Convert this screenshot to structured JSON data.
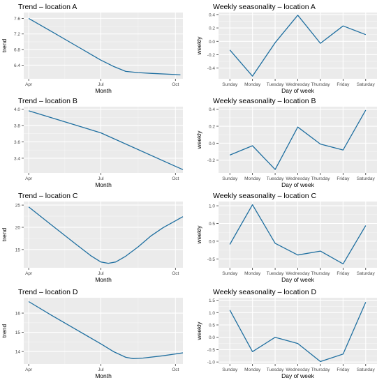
{
  "chart_data": [
    {
      "type": "line",
      "title": "Trend – location A",
      "xlabel": "Month",
      "ylabel": "trend",
      "x_ticks": [
        "Apr",
        "Jul",
        "Oct"
      ],
      "x_tick_values": [
        0.1,
        3.0,
        6.0
      ],
      "xlim": [
        -0.1,
        6.3
      ],
      "ylim": [
        6.05,
        7.75
      ],
      "y_ticks": [
        6.4,
        6.8,
        7.2,
        7.6
      ],
      "y_tick_labels": [
        "6.4",
        "6.8",
        "7.2",
        "7.6"
      ],
      "x": [
        0.1,
        1.0,
        2.0,
        3.0,
        3.5,
        4.0,
        4.5,
        5.0,
        6.0,
        6.2
      ],
      "y": [
        7.6,
        7.27,
        6.9,
        6.53,
        6.37,
        6.24,
        6.21,
        6.19,
        6.16,
        6.15
      ],
      "grid": true,
      "color": "#1f6fa0"
    },
    {
      "type": "line",
      "title": "Weekly seasonality – location A",
      "xlabel": "Day of week",
      "ylabel": "weekly",
      "categories": [
        "Sunday",
        "Monday",
        "Tuesday",
        "Wednesday",
        "Thursday",
        "Friday",
        "Saturday"
      ],
      "values": [
        -0.13,
        -0.52,
        -0.02,
        0.39,
        -0.03,
        0.23,
        0.1
      ],
      "ylim": [
        -0.56,
        0.43
      ],
      "y_ticks": [
        -0.4,
        -0.2,
        0.0,
        0.2,
        0.4
      ],
      "y_tick_labels": [
        "-0.4",
        "-0.2",
        "0.0",
        "0.2",
        "0.4"
      ],
      "grid": true,
      "color": "#1f6fa0"
    },
    {
      "type": "line",
      "title": "Trend – location B",
      "xlabel": "Month",
      "ylabel": "",
      "x_ticks": [
        "Apr",
        "Jul",
        "Oct"
      ],
      "x_tick_values": [
        0.1,
        3.0,
        6.0
      ],
      "xlim": [
        -0.1,
        6.3
      ],
      "ylim": [
        3.22,
        4.03
      ],
      "y_ticks": [
        3.4,
        3.6,
        3.8,
        4.0
      ],
      "y_tick_labels": [
        "3.4",
        "3.6",
        "3.8",
        "4.0"
      ],
      "x": [
        0.1,
        3.0,
        6.3
      ],
      "y": [
        3.98,
        3.71,
        3.26
      ],
      "grid": true,
      "color": "#1f6fa0"
    },
    {
      "type": "line",
      "title": "Weekly seasonality – location B",
      "xlabel": "Day of week",
      "ylabel": "weekly",
      "categories": [
        "Sunday",
        "Monday",
        "Tuesday",
        "Wednesday",
        "Thursday",
        "Friday",
        "Saturday"
      ],
      "values": [
        -0.14,
        -0.03,
        -0.31,
        0.19,
        -0.01,
        -0.08,
        0.39
      ],
      "ylim": [
        -0.35,
        0.43
      ],
      "y_ticks": [
        -0.2,
        0.0,
        0.2,
        0.4
      ],
      "y_tick_labels": [
        "-0.2",
        "0.0",
        "0.2",
        "0.4"
      ],
      "grid": true,
      "color": "#1f6fa0"
    },
    {
      "type": "line",
      "title": "Trend – location C",
      "xlabel": "Month",
      "ylabel": "trend",
      "x_ticks": [
        "Apr",
        "Jul",
        "Oct"
      ],
      "x_tick_values": [
        0.1,
        3.0,
        6.0
      ],
      "xlim": [
        -0.1,
        6.3
      ],
      "ylim": [
        10.9,
        25.8
      ],
      "y_ticks": [
        15,
        20,
        25
      ],
      "y_tick_labels": [
        "15",
        "20",
        "25"
      ],
      "x": [
        0.1,
        1.0,
        2.0,
        2.6,
        3.0,
        3.3,
        3.6,
        4.0,
        4.5,
        5.0,
        5.5,
        6.3
      ],
      "y": [
        24.6,
        20.6,
        16.2,
        13.6,
        12.2,
        11.9,
        12.2,
        13.5,
        15.6,
        18.0,
        19.9,
        22.4
      ],
      "grid": true,
      "color": "#1f6fa0"
    },
    {
      "type": "line",
      "title": "Weekly seasonality – location C",
      "xlabel": "Day of week",
      "ylabel": "weekly",
      "categories": [
        "Sunday",
        "Monday",
        "Tuesday",
        "Wednesday",
        "Thursday",
        "Friday",
        "Saturday"
      ],
      "values": [
        -0.09,
        1.03,
        -0.06,
        -0.39,
        -0.28,
        -0.64,
        0.44
      ],
      "ylim": [
        -0.75,
        1.12
      ],
      "y_ticks": [
        -0.5,
        0.0,
        0.5,
        1.0
      ],
      "y_tick_labels": [
        "-0.5",
        "0.0",
        "0.5",
        "1.0"
      ],
      "grid": true,
      "color": "#1f6fa0"
    },
    {
      "type": "line",
      "title": "Trend – location D",
      "xlabel": "Month",
      "ylabel": "trend",
      "x_ticks": [
        "Apr",
        "Jul",
        "Oct"
      ],
      "x_tick_values": [
        0.1,
        3.0,
        6.0
      ],
      "xlim": [
        -0.1,
        6.3
      ],
      "ylim": [
        13.35,
        16.8
      ],
      "y_ticks": [
        14,
        15,
        16
      ],
      "y_tick_labels": [
        "14",
        "15",
        "16"
      ],
      "x": [
        0.1,
        1.0,
        2.0,
        3.0,
        3.5,
        4.0,
        4.3,
        4.7,
        5.5,
        6.3
      ],
      "y": [
        16.6,
        15.9,
        15.15,
        14.4,
        14.0,
        13.7,
        13.63,
        13.66,
        13.78,
        13.93
      ],
      "grid": true,
      "color": "#1f6fa0"
    },
    {
      "type": "line",
      "title": "Weekly seasonality – location D",
      "xlabel": "Day of week",
      "ylabel": "weekly",
      "categories": [
        "Sunday",
        "Monday",
        "Tuesday",
        "Wednesday",
        "Thursday",
        "Friday",
        "Saturday"
      ],
      "values": [
        1.1,
        -0.58,
        0.0,
        -0.25,
        -0.98,
        -0.68,
        1.42
      ],
      "ylim": [
        -1.08,
        1.6
      ],
      "y_ticks": [
        -1.0,
        -0.5,
        0.0,
        0.5,
        1.0,
        1.5
      ],
      "y_tick_labels": [
        "-1.0",
        "-0.5",
        "0.0",
        "0.5",
        "1.0",
        "1.5"
      ],
      "grid": true,
      "color": "#1f6fa0"
    }
  ]
}
